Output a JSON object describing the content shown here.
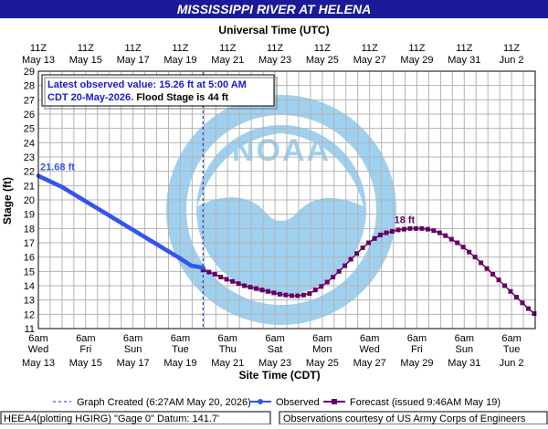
{
  "header": {
    "title": "MISSISSIPPI RIVER AT HELENA"
  },
  "top_axis": {
    "label": "Universal Time (UTC)",
    "ticks": [
      {
        "time": "11Z",
        "date": "May 13"
      },
      {
        "time": "11Z",
        "date": "May 15"
      },
      {
        "time": "11Z",
        "date": "May 17"
      },
      {
        "time": "11Z",
        "date": "May 19"
      },
      {
        "time": "11Z",
        "date": "May 21"
      },
      {
        "time": "11Z",
        "date": "May 23"
      },
      {
        "time": "11Z",
        "date": "May 25"
      },
      {
        "time": "11Z",
        "date": "May 27"
      },
      {
        "time": "11Z",
        "date": "May 29"
      },
      {
        "time": "11Z",
        "date": "May 31"
      },
      {
        "time": "11Z",
        "date": "Jun 2"
      }
    ]
  },
  "info_box": {
    "line1": "Latest observed value: 15.26 ft at 5:00 AM",
    "line2_blue": "CDT 20-May-2026.",
    "line2_black": " Flood Stage is 44 ft"
  },
  "colors": {
    "title_bg": "#1a1a99",
    "observed": "#3355ee",
    "forecast": "#660066",
    "grid": "#b4b4b4",
    "watermark": "#8ec8ee"
  },
  "watermark_icon": "noaa-logo",
  "chart_data": {
    "type": "line",
    "xlabel": "Site Time (CDT)",
    "ylabel": "Stage (ft)",
    "x_unit": "hours from 6am Wed May 13 (CDT)",
    "xlim": [
      0,
      504
    ],
    "ylim": [
      11,
      29
    ],
    "y_ticks": [
      11,
      12,
      13,
      14,
      15,
      16,
      17,
      18,
      19,
      20,
      21,
      22,
      23,
      24,
      25,
      26,
      27,
      28,
      29
    ],
    "bottom_ticks": [
      {
        "time": "6am",
        "day": "Wed",
        "date": "May 13"
      },
      {
        "time": "6am",
        "day": "Fri",
        "date": "May 15"
      },
      {
        "time": "6am",
        "day": "Sun",
        "date": "May 17"
      },
      {
        "time": "6am",
        "day": "Tue",
        "date": "May 19"
      },
      {
        "time": "6am",
        "day": "Thu",
        "date": "May 21"
      },
      {
        "time": "6am",
        "day": "Sat",
        "date": "May 23"
      },
      {
        "time": "6am",
        "day": "Mon",
        "date": "May 25"
      },
      {
        "time": "6am",
        "day": "Wed",
        "date": "May 27"
      },
      {
        "time": "6am",
        "day": "Fri",
        "date": "May 29"
      },
      {
        "time": "6am",
        "day": "Sun",
        "date": "May 31"
      },
      {
        "time": "6am",
        "day": "Tue",
        "date": "Jun 2"
      }
    ],
    "graph_created_x": 167,
    "observed_anchors": [
      [
        0,
        21.68
      ],
      [
        24,
        20.9
      ],
      [
        48,
        19.9
      ],
      [
        72,
        18.9
      ],
      [
        96,
        17.9
      ],
      [
        120,
        16.9
      ],
      [
        144,
        15.9
      ],
      [
        155,
        15.4
      ],
      [
        167,
        15.26
      ]
    ],
    "forecast": {
      "x": [
        167,
        173,
        179,
        185,
        191,
        197,
        203,
        209,
        215,
        221,
        227,
        233,
        239,
        245,
        251,
        257,
        263,
        269,
        275,
        281,
        287,
        293,
        299,
        305,
        311,
        317,
        323,
        329,
        335,
        341,
        347,
        353,
        359,
        365,
        371,
        377,
        383,
        389,
        395,
        401,
        407,
        413,
        419,
        425,
        431,
        437,
        443,
        449,
        455,
        461,
        467,
        473,
        479,
        485,
        491,
        497,
        503
      ],
      "y": [
        15.1,
        14.95,
        14.8,
        14.6,
        14.45,
        14.3,
        14.15,
        14.0,
        13.9,
        13.8,
        13.7,
        13.6,
        13.5,
        13.4,
        13.35,
        13.3,
        13.3,
        13.35,
        13.45,
        13.7,
        13.95,
        14.25,
        14.6,
        15.0,
        15.4,
        15.85,
        16.25,
        16.65,
        17.0,
        17.3,
        17.55,
        17.7,
        17.8,
        17.9,
        17.95,
        18.0,
        18.0,
        18.0,
        17.95,
        17.85,
        17.7,
        17.5,
        17.25,
        17.0,
        16.7,
        16.35,
        16.0,
        15.6,
        15.2,
        14.8,
        14.4,
        14.0,
        13.6,
        13.2,
        12.8,
        12.4,
        12.05
      ]
    },
    "annotations": [
      {
        "text": "21.68 ft",
        "x": 0,
        "y": 21.68,
        "series": "observed"
      },
      {
        "text": "18 ft",
        "x": 377,
        "y": 18.0,
        "series": "forecast"
      }
    ]
  },
  "legend": {
    "created": "Graph Created (6:27AM May 20, 2026)",
    "observed": "Observed",
    "forecast": "Forecast (issued 9:46AM May 19)"
  },
  "footer": {
    "left": "HEEA4(plotting HGIRG) \"Gage 0\" Datum: 141.7'",
    "right": "Observations courtesy of US Army Corps of Engineers"
  }
}
